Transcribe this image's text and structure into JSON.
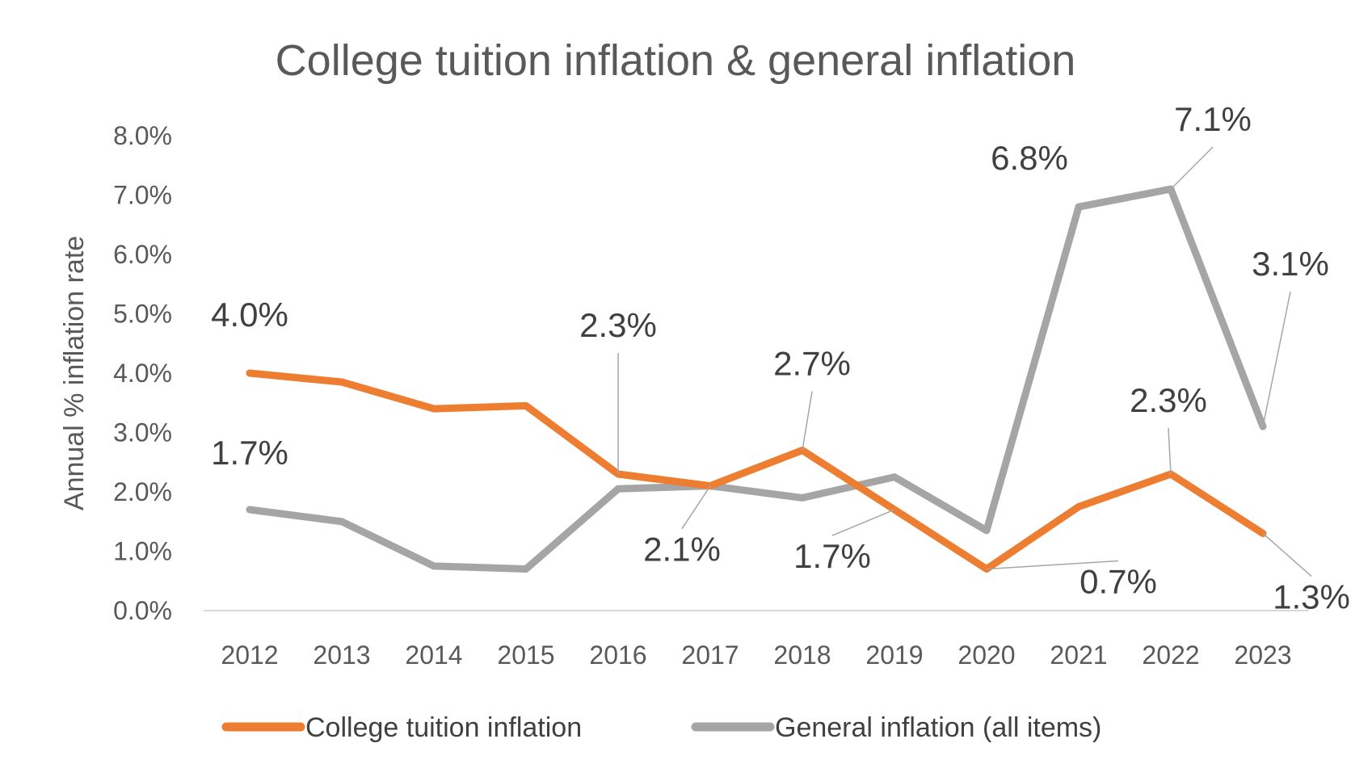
{
  "chart_data": {
    "type": "line",
    "title": "College tuition inflation & general inflation",
    "xlabel": "",
    "ylabel": "Annual % inflation rate",
    "categories": [
      "2012",
      "2013",
      "2014",
      "2015",
      "2016",
      "2017",
      "2018",
      "2019",
      "2020",
      "2021",
      "2022",
      "2023"
    ],
    "y_ticks": [
      "0.0%",
      "1.0%",
      "2.0%",
      "3.0%",
      "4.0%",
      "5.0%",
      "6.0%",
      "7.0%",
      "8.0%"
    ],
    "ylim": [
      0,
      8
    ],
    "grid": false,
    "legend_position": "bottom",
    "series": [
      {
        "name": "College tuition inflation",
        "color": "#ED7D31",
        "values": [
          4.0,
          3.85,
          3.4,
          3.45,
          2.3,
          2.1,
          2.7,
          1.7,
          0.7,
          1.75,
          2.3,
          1.3
        ]
      },
      {
        "name": "General inflation (all items)",
        "color": "#A5A5A5",
        "values": [
          1.7,
          1.5,
          0.75,
          0.7,
          2.05,
          2.1,
          1.9,
          2.25,
          1.35,
          6.8,
          7.1,
          3.1
        ]
      }
    ],
    "data_labels": [
      {
        "text": "4.0%",
        "series": 0,
        "index": 0
      },
      {
        "text": "2.3%",
        "series": 0,
        "index": 4
      },
      {
        "text": "2.1%",
        "series": 0,
        "index": 5
      },
      {
        "text": "2.7%",
        "series": 0,
        "index": 6
      },
      {
        "text": "1.7%",
        "series": 0,
        "index": 7
      },
      {
        "text": "0.7%",
        "series": 0,
        "index": 8
      },
      {
        "text": "2.3%",
        "series": 0,
        "index": 10
      },
      {
        "text": "1.3%",
        "series": 0,
        "index": 11
      },
      {
        "text": "1.7%",
        "series": 1,
        "index": 0
      },
      {
        "text": "6.8%",
        "series": 1,
        "index": 9
      },
      {
        "text": "7.1%",
        "series": 1,
        "index": 10
      },
      {
        "text": "3.1%",
        "series": 1,
        "index": 11
      }
    ]
  }
}
